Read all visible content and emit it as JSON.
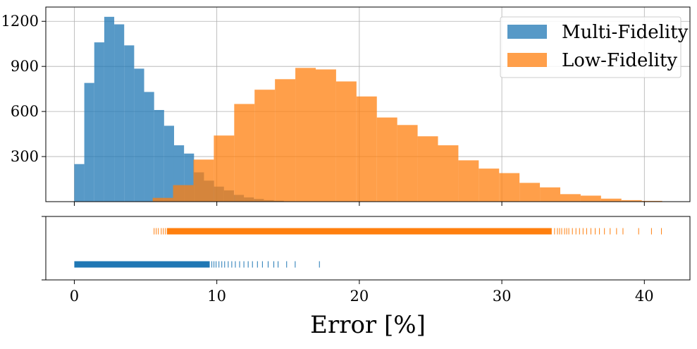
{
  "chart_data": [
    {
      "type": "bar",
      "title": "",
      "xlabel": "",
      "ylabel": "",
      "xlim": [
        -2,
        43.2
      ],
      "ylim": [
        0,
        1295
      ],
      "yticks": [
        300,
        600,
        900,
        1200
      ],
      "grid": true,
      "legend_position": "top-right",
      "series": [
        {
          "name": "Multi-Fidelity",
          "color": "#1f77b4",
          "bin_start": 0,
          "bin_width": 0.7,
          "values": [
            250,
            790,
            1060,
            1230,
            1180,
            1040,
            885,
            730,
            610,
            505,
            375,
            320,
            195,
            140,
            100,
            75,
            45,
            28,
            18,
            10,
            6
          ]
        },
        {
          "name": "Low-Fidelity",
          "color": "#ff7f0e",
          "bin_start": 5.5,
          "bin_width": 1.43,
          "values": [
            25,
            110,
            280,
            440,
            650,
            745,
            815,
            890,
            880,
            800,
            700,
            560,
            510,
            435,
            375,
            275,
            220,
            190,
            125,
            95,
            50,
            40,
            20,
            10,
            5
          ]
        }
      ]
    },
    {
      "type": "scatter",
      "title": "",
      "xlabel": "Error [%]",
      "ylabel": "",
      "xlim": [
        -2,
        43.2
      ],
      "xticks": [
        0,
        10,
        20,
        30,
        40
      ],
      "grid": false,
      "series": [
        {
          "name": "Low-Fidelity",
          "color": "#ff7f0e",
          "row": "upper",
          "dense_range": [
            6.5,
            33.5
          ],
          "outliers": [
            5.6,
            5.75,
            5.9,
            6.1,
            6.25,
            6.4,
            33.7,
            33.9,
            34.05,
            34.2,
            34.4,
            34.55,
            34.7,
            34.95,
            35.2,
            35.45,
            35.7,
            35.95,
            36.25,
            36.55,
            36.85,
            37.2,
            37.6,
            38.05,
            38.5,
            39.6,
            40.5,
            41.2
          ]
        },
        {
          "name": "Multi-Fidelity",
          "color": "#1f77b4",
          "row": "lower",
          "dense_range": [
            0,
            9.5
          ],
          "outliers": [
            9.65,
            9.8,
            9.95,
            10.15,
            10.35,
            10.55,
            10.8,
            11.05,
            11.3,
            11.6,
            11.9,
            12.2,
            12.5,
            12.85,
            13.2,
            13.6,
            14.0,
            14.3,
            14.9,
            15.5,
            17.2
          ]
        }
      ]
    }
  ]
}
